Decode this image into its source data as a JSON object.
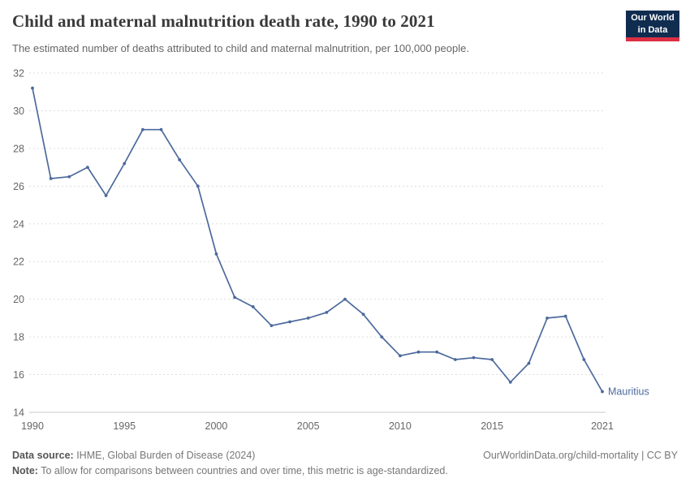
{
  "header": {
    "title": "Child and maternal malnutrition death rate, 1990 to 2021",
    "subtitle": "The estimated number of deaths attributed to child and maternal malnutrition, per 100,000 people.",
    "logo": {
      "line1": "Our World",
      "line2": "in Data",
      "bg_color": "#102d50",
      "stripe_color": "#dc2f44"
    }
  },
  "chart_data": {
    "type": "line",
    "title": "Child and maternal malnutrition death rate, 1990 to 2021",
    "xlabel": "",
    "ylabel": "",
    "xlim": [
      1990,
      2021
    ],
    "ylim": [
      14,
      32
    ],
    "x_ticks": [
      1990,
      1995,
      2000,
      2005,
      2010,
      2015,
      2021
    ],
    "y_ticks": [
      14,
      16,
      18,
      20,
      22,
      24,
      26,
      28,
      30,
      32
    ],
    "grid": "horizontal-dashed",
    "legend_position": "end-of-line-label",
    "end_label": "Mauritius",
    "series": [
      {
        "name": "Mauritius",
        "color": "#4c6a9c",
        "x": [
          1990,
          1991,
          1992,
          1993,
          1994,
          1995,
          1996,
          1997,
          1998,
          1999,
          2000,
          2001,
          2002,
          2003,
          2004,
          2005,
          2006,
          2007,
          2008,
          2009,
          2010,
          2011,
          2012,
          2013,
          2014,
          2015,
          2016,
          2017,
          2018,
          2019,
          2020,
          2021
        ],
        "values": [
          31.2,
          26.4,
          26.5,
          27.0,
          25.5,
          27.2,
          29.0,
          29.0,
          27.4,
          26.0,
          22.4,
          20.1,
          19.6,
          18.6,
          18.8,
          19.0,
          19.3,
          20.0,
          19.2,
          18.0,
          17.0,
          17.2,
          17.2,
          16.8,
          16.9,
          16.8,
          15.6,
          16.6,
          19.0,
          19.1,
          16.8,
          15.1
        ]
      }
    ]
  },
  "footer": {
    "source_label": "Data source:",
    "source_text": " IHME, Global Burden of Disease (2024)",
    "right_text": "OurWorldinData.org/child-mortality | CC BY",
    "note_label": "Note:",
    "note_text": " To allow for comparisons between countries and over time, this metric is age-standardized."
  }
}
